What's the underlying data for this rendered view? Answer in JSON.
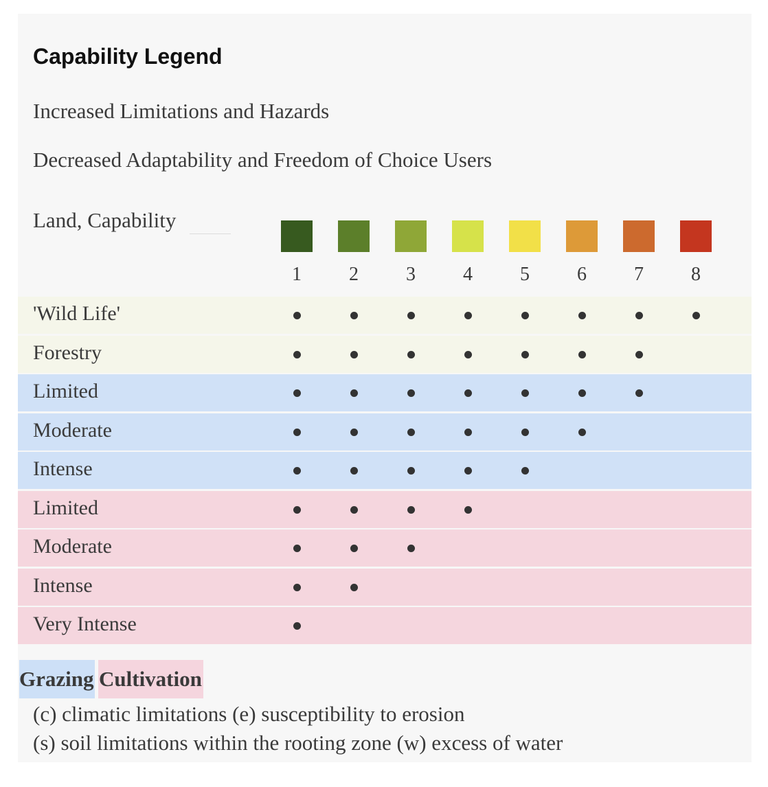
{
  "title": "Capability Legend",
  "subtitles": [
    "Increased Limitations and Hazards",
    "Decreased Adaptability and Freedom of Choice Users"
  ],
  "land_capability_label": "Land, Capability",
  "classes": [
    {
      "label": "1",
      "color": "#375a1f"
    },
    {
      "label": "2",
      "color": "#5c7f2a"
    },
    {
      "label": "3",
      "color": "#8fa737"
    },
    {
      "label": "4",
      "color": "#d6e24a"
    },
    {
      "label": "5",
      "color": "#f2e048"
    },
    {
      "label": "6",
      "color": "#dd9a38"
    },
    {
      "label": "7",
      "color": "#cc6a2e"
    },
    {
      "label": "8",
      "color": "#c4361f"
    }
  ],
  "group_colors": {
    "wildlife_forestry": "#f5f6ea",
    "grazing": "#d0e1f7",
    "cultivation": "#f5d6de"
  },
  "rows": [
    {
      "label": "'Wild Life'",
      "group": "wildlife_forestry",
      "max_class": 8
    },
    {
      "label": "Forestry",
      "group": "wildlife_forestry",
      "max_class": 7
    },
    {
      "label": "Limited",
      "group": "grazing",
      "max_class": 7
    },
    {
      "label": "Moderate",
      "group": "grazing",
      "max_class": 6
    },
    {
      "label": "Intense",
      "group": "grazing",
      "max_class": 5
    },
    {
      "label": "Limited",
      "group": "cultivation",
      "max_class": 4
    },
    {
      "label": "Moderate",
      "group": "cultivation",
      "max_class": 3
    },
    {
      "label": "Intense",
      "group": "cultivation",
      "max_class": 2
    },
    {
      "label": "Very Intense",
      "group": "cultivation",
      "max_class": 1
    }
  ],
  "legend": {
    "grazing": "Grazing",
    "cultivation": "Cultivation"
  },
  "notes": [
    "(c) climatic limitations (e) susceptibility to erosion",
    "(s) soil limitations within the rooting zone (w) excess of water"
  ]
}
